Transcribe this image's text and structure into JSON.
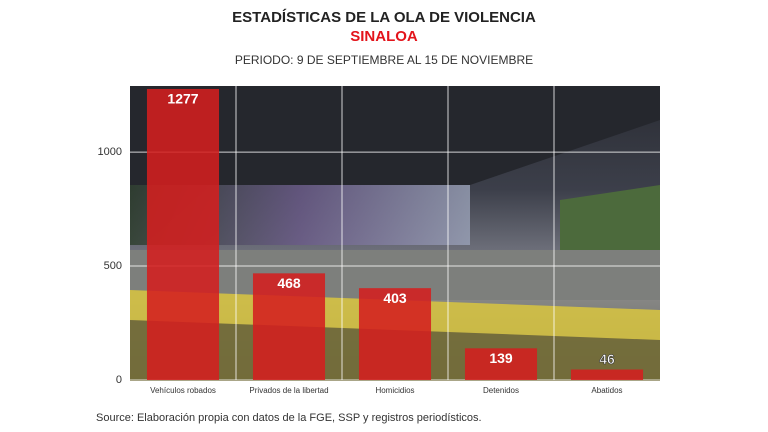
{
  "chart_data": {
    "type": "bar",
    "title": "ESTADÍSTICAS DE LA OLA DE VIOLENCIA",
    "subtitle": "SINALOA",
    "period": "PERIODO: 9 DE SEPTIEMBRE AL 15 DE NOVIEMBRE",
    "source": "Source: Elaboración propia con datos de la FGE, SSP y registros periodísticos.",
    "categories": [
      "Vehículos robados",
      "Privados de la libertad",
      "Homicidios",
      "Detenidos",
      "Abatidos"
    ],
    "values": [
      1277,
      468,
      403,
      139,
      46
    ],
    "color": "#d41f1f",
    "ylim": [
      0,
      1290
    ],
    "yticks": [
      0,
      500,
      1000
    ],
    "grid": true
  }
}
